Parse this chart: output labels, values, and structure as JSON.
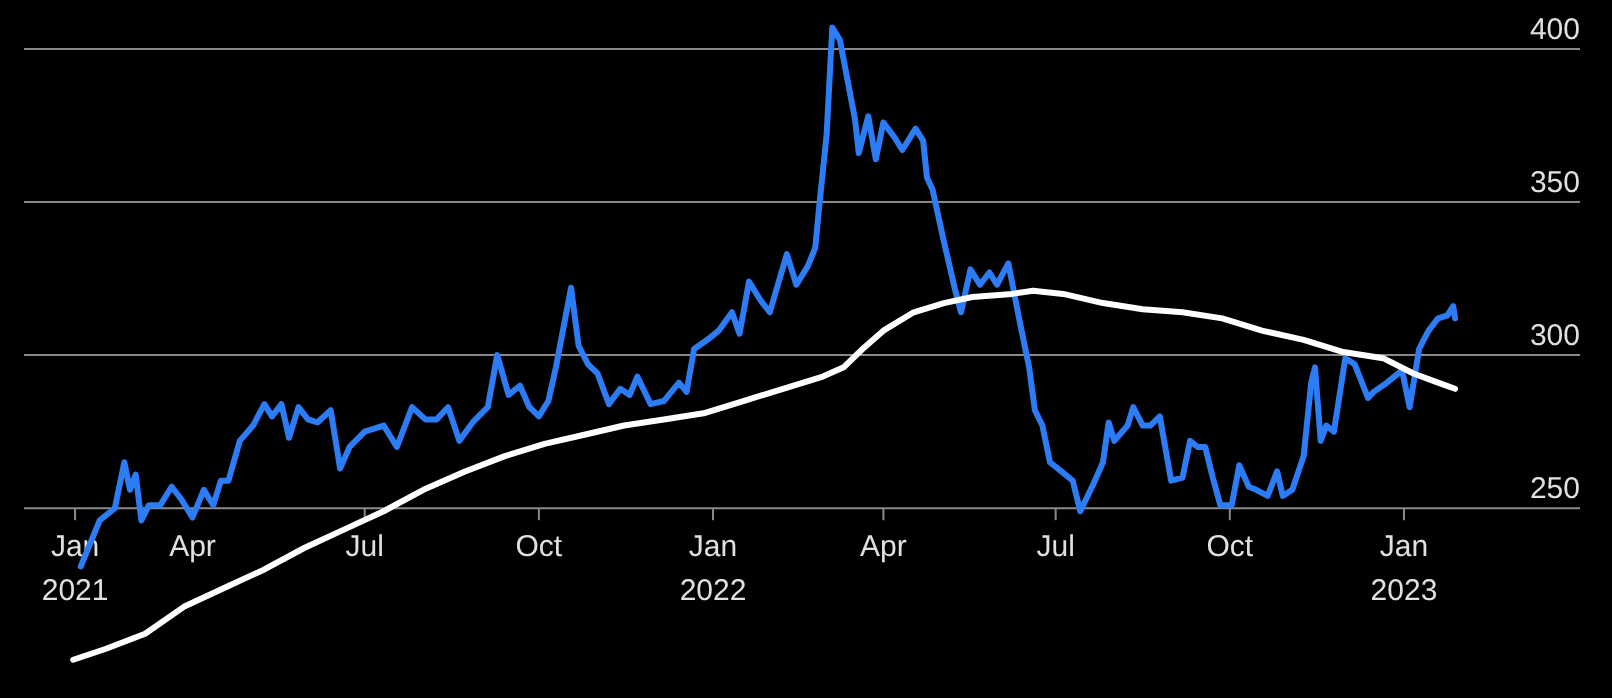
{
  "chart_data": {
    "type": "line",
    "xlim": [
      "2021-01-02",
      "2023-04-04"
    ],
    "ylim": [
      188,
      416
    ],
    "xticks": [
      {
        "value": "2021-01-29",
        "label": "Jan\n2021"
      },
      {
        "value": "2021-04-01",
        "label": "Apr"
      },
      {
        "value": "2021-07-01",
        "label": "Jul"
      },
      {
        "value": "2021-10-01",
        "label": "Oct"
      },
      {
        "value": "2022-01-01",
        "label": "Jan\n2022"
      },
      {
        "value": "2022-04-01",
        "label": "Apr"
      },
      {
        "value": "2022-07-01",
        "label": "Jul"
      },
      {
        "value": "2022-10-01",
        "label": "Oct"
      },
      {
        "value": "2023-01-01",
        "label": "Jan\n2023"
      }
    ],
    "yticks": [
      250,
      300,
      350,
      400
    ],
    "grid": "y",
    "line_style": "solid",
    "marker": "none",
    "series": [
      {
        "color": "#2b7cf5",
        "x": [
          "2021-02-01",
          "2021-02-11",
          "2021-02-19",
          "2021-02-24",
          "2021-02-27",
          "2021-03-02",
          "2021-03-05",
          "2021-03-09",
          "2021-03-15",
          "2021-03-21",
          "2021-03-26",
          "2021-04-01",
          "2021-04-07",
          "2021-04-12",
          "2021-04-16",
          "2021-04-20",
          "2021-04-26",
          "2021-05-03",
          "2021-05-09",
          "2021-05-13",
          "2021-05-18",
          "2021-05-22",
          "2021-05-27",
          "2021-06-01",
          "2021-06-06",
          "2021-06-13",
          "2021-06-18",
          "2021-06-23",
          "2021-07-01",
          "2021-07-11",
          "2021-07-18",
          "2021-07-26",
          "2021-08-02",
          "2021-08-08",
          "2021-08-14",
          "2021-08-20",
          "2021-08-27",
          "2021-09-04",
          "2021-09-09",
          "2021-09-15",
          "2021-09-21",
          "2021-09-26",
          "2021-10-01",
          "2021-10-06",
          "2021-10-10",
          "2021-10-18",
          "2021-10-22",
          "2021-10-27",
          "2021-11-01",
          "2021-11-07",
          "2021-11-13",
          "2021-11-18",
          "2021-11-22",
          "2021-11-29",
          "2021-12-06",
          "2021-12-14",
          "2021-12-18",
          "2021-12-22",
          "2021-12-29",
          "2022-01-04",
          "2022-01-11",
          "2022-01-15",
          "2022-01-20",
          "2022-01-26",
          "2022-01-31",
          "2022-02-09",
          "2022-02-14",
          "2022-02-20",
          "2022-02-24",
          "2022-02-26",
          "2022-03-02",
          "2022-03-05",
          "2022-03-09",
          "2022-03-13",
          "2022-03-17",
          "2022-03-19",
          "2022-03-24",
          "2022-03-28",
          "2022-04-01",
          "2022-04-07",
          "2022-04-11",
          "2022-04-18",
          "2022-04-22",
          "2022-04-24",
          "2022-04-27",
          "2022-05-03",
          "2022-05-09",
          "2022-05-12",
          "2022-05-17",
          "2022-05-22",
          "2022-05-27",
          "2022-05-31",
          "2022-06-06",
          "2022-06-12",
          "2022-06-17",
          "2022-06-20",
          "2022-06-24",
          "2022-06-28",
          "2022-07-04",
          "2022-07-10",
          "2022-07-14",
          "2022-07-21",
          "2022-07-26",
          "2022-07-29",
          "2022-08-01",
          "2022-08-08",
          "2022-08-11",
          "2022-08-16",
          "2022-08-20",
          "2022-08-25",
          "2022-08-31",
          "2022-09-06",
          "2022-09-10",
          "2022-09-14",
          "2022-09-18",
          "2022-09-22",
          "2022-09-26",
          "2022-10-02",
          "2022-10-06",
          "2022-10-11",
          "2022-10-15",
          "2022-10-21",
          "2022-10-26",
          "2022-10-29",
          "2022-11-03",
          "2022-11-09",
          "2022-11-13",
          "2022-11-15",
          "2022-11-18",
          "2022-11-21",
          "2022-11-25",
          "2022-12-01",
          "2022-12-06",
          "2022-12-13",
          "2022-12-16",
          "2022-12-23",
          "2022-12-31",
          "2023-01-04",
          "2023-01-09",
          "2023-01-14",
          "2023-01-19",
          "2023-01-24",
          "2023-01-27",
          "2023-01-28"
        ],
        "values": [
          231,
          246,
          250,
          265,
          256,
          261,
          246,
          251,
          251,
          257,
          253,
          247,
          256,
          251,
          259,
          259,
          272,
          277,
          284,
          280,
          284,
          273,
          283,
          279,
          278,
          282,
          263,
          270,
          275,
          277,
          270,
          283,
          279,
          279,
          283,
          272,
          278,
          283,
          300,
          287,
          290,
          283,
          280,
          285,
          296,
          322,
          303,
          297,
          294,
          284,
          289,
          287,
          293,
          284,
          285,
          291,
          288,
          302,
          305,
          308,
          314,
          307,
          324,
          318,
          314,
          333,
          323,
          329,
          335,
          348,
          372,
          407,
          403,
          390,
          377,
          366,
          378,
          364,
          376,
          371,
          367,
          374,
          370,
          358,
          354,
          337,
          321,
          314,
          328,
          323,
          327,
          323,
          330,
          311,
          296,
          282,
          277,
          265,
          262,
          259,
          249,
          258,
          265,
          278,
          272,
          277,
          283,
          277,
          277,
          280,
          259,
          260,
          272,
          270,
          270,
          260,
          251,
          251,
          264,
          257,
          256,
          254,
          262,
          254,
          256,
          267,
          291,
          296,
          272,
          277,
          275,
          299,
          297,
          286,
          288,
          291,
          295,
          283,
          302,
          308,
          312,
          313,
          316,
          312
        ]
      },
      {
        "color": "#ffffff",
        "x": [
          "2021-01-28",
          "2021-02-14",
          "2021-03-07",
          "2021-03-28",
          "2021-04-18",
          "2021-05-09",
          "2021-05-30",
          "2021-06-20",
          "2021-07-11",
          "2021-08-01",
          "2021-08-23",
          "2021-09-13",
          "2021-10-04",
          "2021-10-25",
          "2021-11-15",
          "2021-12-06",
          "2021-12-27",
          "2022-01-17",
          "2022-02-07",
          "2022-02-28",
          "2022-03-11",
          "2022-03-21",
          "2022-04-01",
          "2022-04-17",
          "2022-05-03",
          "2022-05-18",
          "2022-06-08",
          "2022-06-19",
          "2022-07-05",
          "2022-07-26",
          "2022-08-16",
          "2022-09-06",
          "2022-09-27",
          "2022-10-18",
          "2022-11-09",
          "2022-11-30",
          "2022-12-21",
          "2023-01-06",
          "2023-01-19",
          "2023-01-28"
        ],
        "values": [
          200.5,
          204,
          209,
          218,
          224,
          230,
          237,
          243,
          249,
          256,
          262,
          267,
          271,
          274,
          277,
          279,
          281,
          285,
          289,
          293,
          296,
          302,
          308,
          314,
          317,
          319,
          320,
          321,
          320,
          317,
          315,
          314,
          312,
          308,
          305,
          301,
          299,
          294,
          291,
          289
        ]
      }
    ]
  }
}
